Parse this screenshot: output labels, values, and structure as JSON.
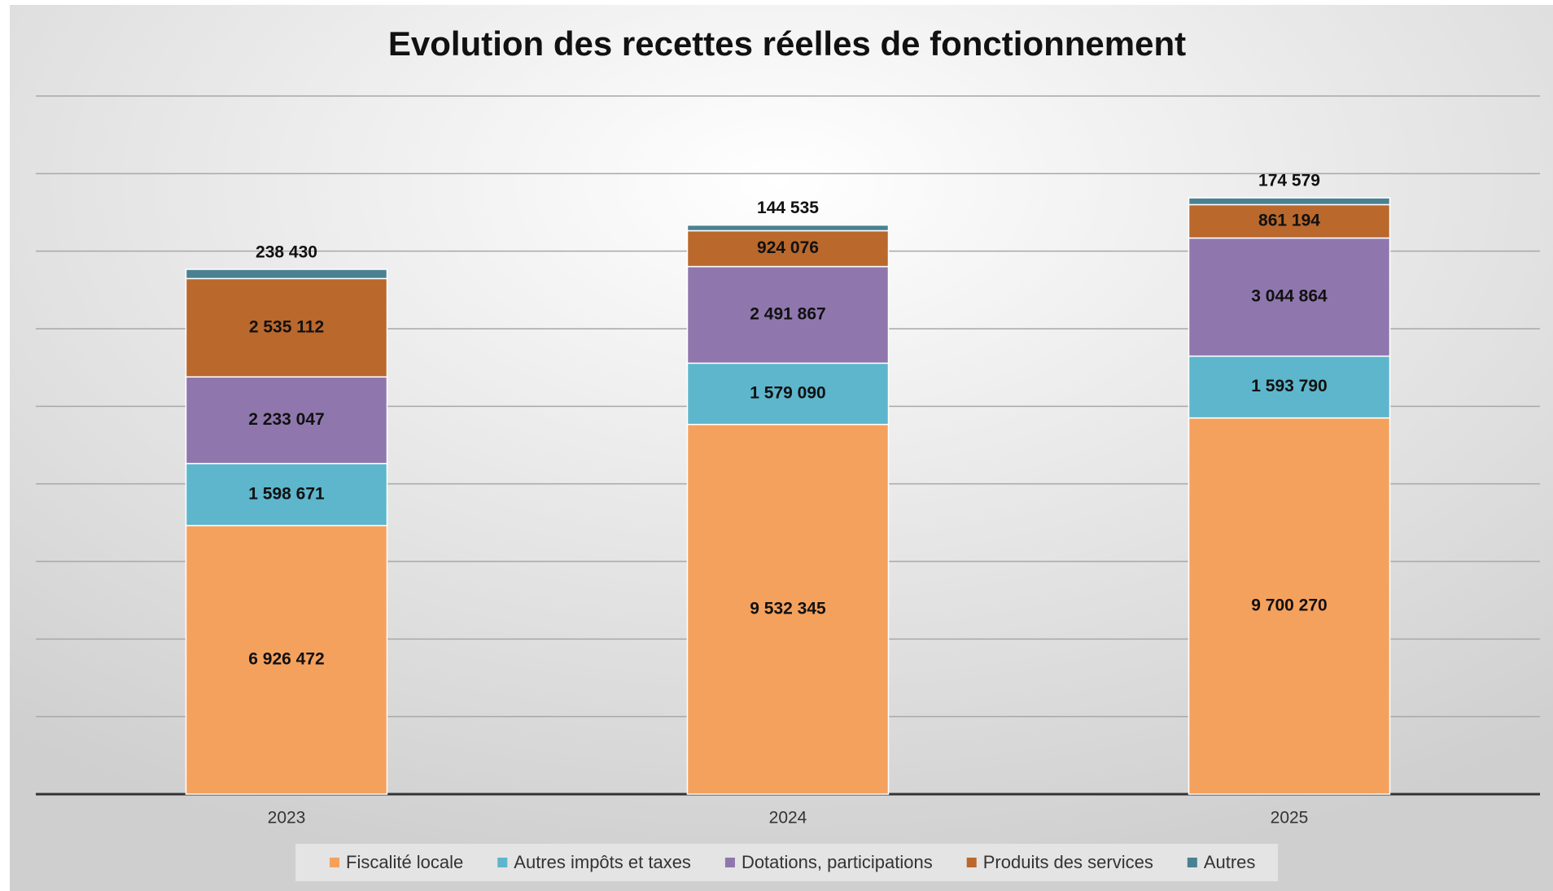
{
  "chart_data": {
    "type": "stacked_bar",
    "title": "Evolution des recettes réelles de fonctionnement",
    "categories": [
      "2023",
      "2024",
      "2025"
    ],
    "series": [
      {
        "name": "Fiscalité locale",
        "color": "#f5a15e",
        "values": [
          6926472,
          9532345,
          9700270
        ],
        "value_labels": [
          "6 926 472",
          "9 532 345",
          "9 700 270"
        ]
      },
      {
        "name": "Autres impôts et taxes",
        "color": "#5db6cc",
        "values": [
          1598671,
          1579090,
          1593790
        ],
        "value_labels": [
          "1 598 671",
          "1 579 090",
          "1 593 790"
        ]
      },
      {
        "name": "Dotations, participations",
        "color": "#8f77ae",
        "values": [
          2233047,
          2491867,
          3044864
        ],
        "value_labels": [
          "2 233 047",
          "2 491 867",
          "3 044 864"
        ]
      },
      {
        "name": "Produits des services",
        "color": "#ba682c",
        "values": [
          2535112,
          924076,
          861194
        ],
        "value_labels": [
          "2 535 112",
          "924 076",
          "861 194"
        ]
      },
      {
        "name": "Autres",
        "color": "#4a8192",
        "values": [
          238430,
          144535,
          174579
        ],
        "value_labels": [
          "238 430",
          "144 535",
          "174 579"
        ]
      }
    ],
    "ylim": [
      0,
      18000000
    ],
    "yticks": [
      0,
      2000000,
      4000000,
      6000000,
      8000000,
      10000000,
      12000000,
      14000000,
      16000000,
      18000000
    ],
    "grid": true,
    "legend": "bottom"
  }
}
